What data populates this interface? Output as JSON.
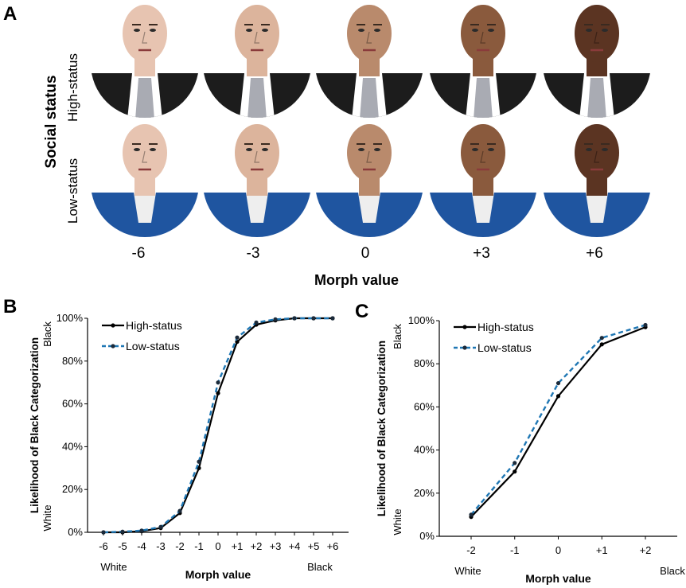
{
  "panel_a": {
    "letter": "A",
    "side_title": "Social status",
    "row_labels": [
      "High-status",
      "Low-status"
    ],
    "morph_ticks": [
      "-6",
      "-3",
      "0",
      "+3",
      "+6"
    ],
    "axis_title": "Morph value",
    "skin_colors": [
      "#e7c4b1",
      "#dcb49c",
      "#b98a6c",
      "#8a5a3d",
      "#5b3422"
    ],
    "suit_color": "#1c1c1c",
    "tie_color": "#a9abb3",
    "jacket_color": "#1f55a0"
  },
  "panel_b": {
    "letter": "B"
  },
  "panel_c": {
    "letter": "C"
  },
  "colors": {
    "high": "#000000",
    "low": "#1f77b4"
  },
  "chart_data": [
    {
      "type": "line",
      "categories": [
        "-6",
        "-5",
        "-4",
        "-3",
        "-2",
        "-1",
        "0",
        "+1",
        "+2",
        "+3",
        "+4",
        "+5",
        "+6"
      ],
      "series": [
        {
          "name": "High-status",
          "values": [
            0,
            0,
            0.5,
            2,
            9,
            30,
            65,
            89,
            97,
            99,
            100,
            100,
            100
          ]
        },
        {
          "name": "Low-status",
          "values": [
            0,
            0.3,
            0.8,
            2.5,
            10,
            33,
            70,
            91,
            98,
            99.5,
            100,
            100,
            100
          ]
        }
      ],
      "yticks": [
        "0%",
        "20%",
        "40%",
        "60%",
        "80%",
        "100%"
      ],
      "ylim": [
        0,
        100
      ],
      "ylabel": "Likelihood of Black Categorization",
      "ylabel_bottom": "White",
      "ylabel_top": "Black",
      "xlabel": "Morph value",
      "xlabel_left": "White",
      "xlabel_right": "Black",
      "legend": "top-left",
      "grid": false
    },
    {
      "type": "line",
      "categories": [
        "-2",
        "-1",
        "0",
        "+1",
        "+2"
      ],
      "series": [
        {
          "name": "High-status",
          "values": [
            9,
            30,
            65,
            89,
            97
          ]
        },
        {
          "name": "Low-status",
          "values": [
            10,
            34,
            71,
            92,
            98
          ]
        }
      ],
      "yticks": [
        "0%",
        "20%",
        "40%",
        "60%",
        "80%",
        "100%"
      ],
      "ylim": [
        0,
        100
      ],
      "ylabel": "Likelihood of Black Categorization",
      "ylabel_bottom": "White",
      "ylabel_top": "Black",
      "xlabel": "Morph value",
      "xlabel_left": "White",
      "xlabel_right": "Black",
      "legend": "top-left",
      "grid": false
    }
  ]
}
